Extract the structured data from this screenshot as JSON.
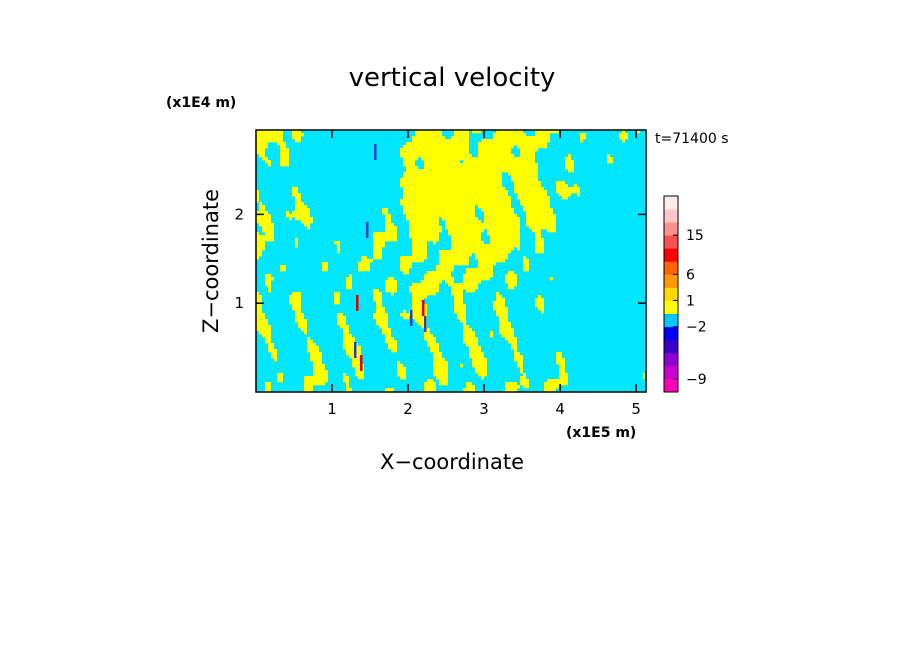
{
  "chart_data": {
    "type": "heatmap",
    "title": "vertical velocity",
    "xlabel": "X−coordinate",
    "ylabel": "Z−coordinate",
    "x_unit": "(x1E5 m)",
    "y_unit": "(x1E4 m)",
    "time_label": "t=71400 s",
    "xlim": [
      0,
      5.13
    ],
    "ylim": [
      0,
      2.95
    ],
    "x_ticks": [
      1,
      2,
      3,
      4,
      5
    ],
    "x_tick_labels": [
      "1",
      "2",
      "3",
      "4",
      "5"
    ],
    "y_ticks": [
      1,
      2
    ],
    "y_tick_labels": [
      "1",
      "2"
    ],
    "colorbar": {
      "colors": [
        "#ff00b4",
        "#cc00cc",
        "#9000d0",
        "#3c00c8",
        "#0000ff",
        "#00c8ff",
        "#ffff00",
        "#ffd800",
        "#ff9600",
        "#ff6400",
        "#ff0000",
        "#ff5050",
        "#ff9090",
        "#ffc8c8",
        "#ffeaea"
      ],
      "tick_labels": [
        "−9",
        "−2",
        "1",
        "6",
        "15"
      ],
      "tick_levels": [
        1,
        5,
        7,
        9,
        12
      ]
    },
    "field_colors": {
      "negative": "#00e6ff",
      "positive": "#ffff00",
      "strong_negative": "#2040d0",
      "strong_positive": "#e00000"
    }
  }
}
